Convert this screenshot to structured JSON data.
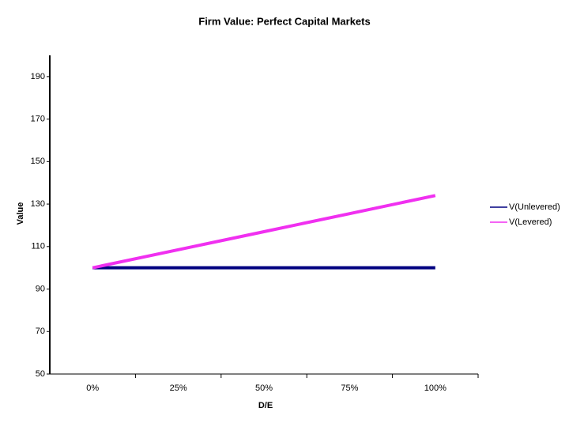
{
  "chart_data": {
    "type": "line",
    "title": "Firm Value:  Perfect Capital Markets",
    "x_label": "D/E",
    "y_label": "Value",
    "categories": [
      "0%",
      "25%",
      "50%",
      "75%",
      "100%"
    ],
    "series": [
      {
        "name": "V(Unlevered)",
        "color": "#000080",
        "values": [
          100,
          100,
          100,
          100,
          100
        ]
      },
      {
        "name": "V(Levered)",
        "color": "#f030f0",
        "values": [
          100,
          108.5,
          117,
          125.5,
          134
        ]
      }
    ],
    "ylim": [
      50,
      200
    ],
    "yticks": [
      50,
      70,
      90,
      110,
      130,
      150,
      170,
      190
    ],
    "grid": false,
    "legend": "right"
  }
}
